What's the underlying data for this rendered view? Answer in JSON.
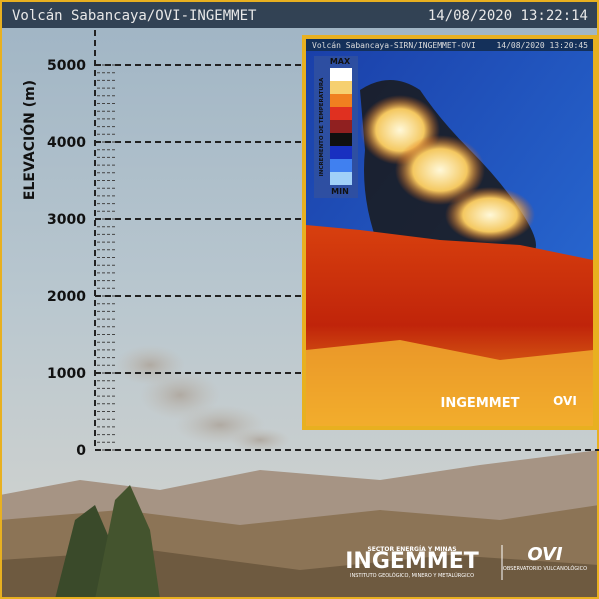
{
  "header": {
    "title": "Volcán Sabancaya/OVI-INGEMMET",
    "timestamp": "14/08/2020 13:22:14"
  },
  "elevation_axis": {
    "label": "ELEVACIÓN (m)",
    "ticks": [
      0,
      1000,
      2000,
      3000,
      4000,
      5000
    ]
  },
  "inset": {
    "title": "Volcán Sabancaya-SIRN/INGEMMET-OVI",
    "timestamp": "14/08/2020 13:20:45",
    "legend": {
      "max": "MAX",
      "min": "MIN",
      "label": "INCREMENTO DE TEMPERATURA"
    },
    "logos": [
      "INGEMMET",
      "OVI"
    ]
  },
  "logos": {
    "ingemmet": "INGEMMET",
    "ingemmet_sub": "SECTOR ENERGÍA Y MINAS",
    "ingemmet_desc": "INSTITUTO GEOLÓGICO, MINERO Y METALÚRGICO",
    "ovi": "OVI",
    "ovi_desc": "OBSERVATORIO VULCANOLÓGICO"
  }
}
